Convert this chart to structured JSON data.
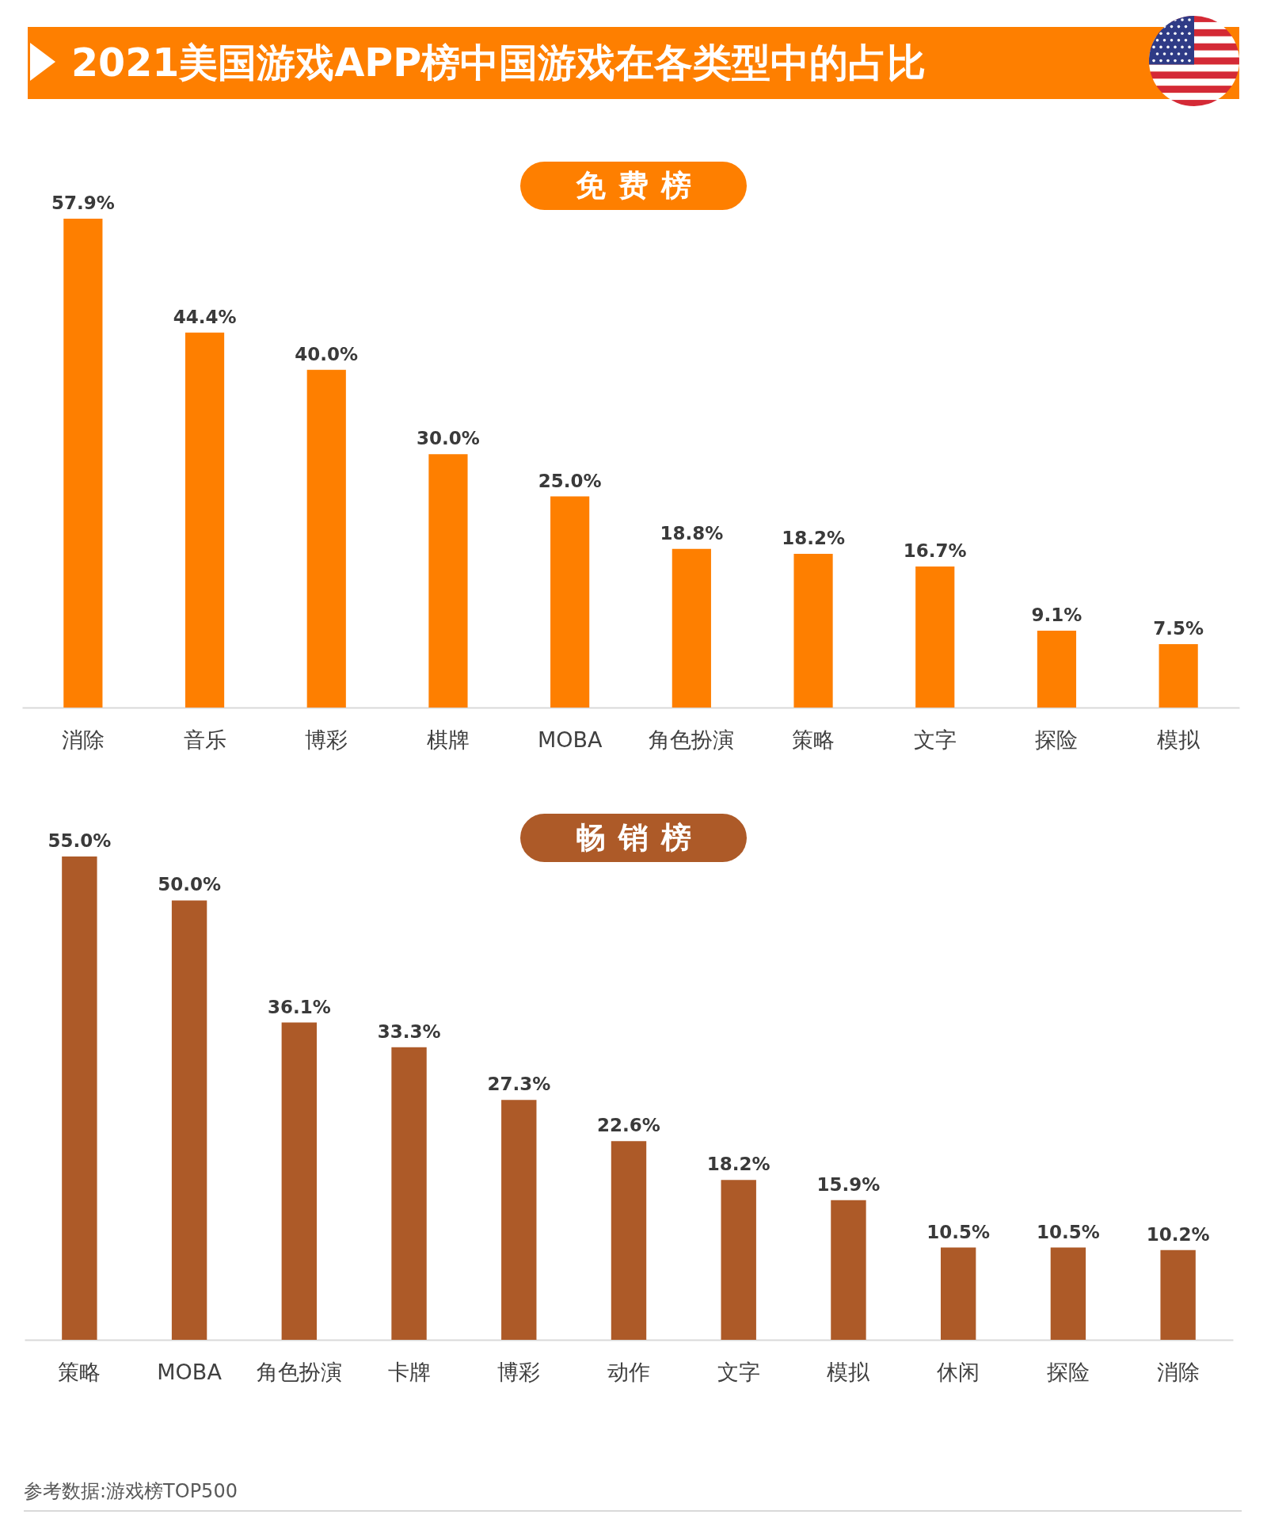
{
  "chart_data": [
    {
      "type": "bar",
      "title": "2021美国游戏APP榜中国游戏在各类型中的占比",
      "subtitle": "免费榜",
      "categories": [
        "消除",
        "音乐",
        "博彩",
        "棋牌",
        "MOBA",
        "角色扮演",
        "策略",
        "文字",
        "探险",
        "模拟"
      ],
      "values": [
        57.9,
        44.4,
        40.0,
        30.0,
        25.0,
        18.8,
        18.2,
        16.7,
        9.1,
        7.5
      ],
      "value_labels": [
        "57.9%",
        "44.4%",
        "40.0%",
        "30.0%",
        "25.0%",
        "18.8%",
        "18.2%",
        "16.7%",
        "9.1%",
        "7.5%"
      ],
      "color": "#fe7f00",
      "tick_labels": "x"
    },
    {
      "type": "bar",
      "title": "畅销榜",
      "categories": [
        "策略",
        "MOBA",
        "角色扮演",
        "卡牌",
        "博彩",
        "动作",
        "文字",
        "模拟",
        "休闲",
        "探险",
        "消除"
      ],
      "values": [
        55.0,
        50.0,
        36.1,
        33.3,
        27.3,
        22.6,
        18.2,
        15.9,
        10.5,
        10.5,
        10.2
      ],
      "value_labels": [
        "55.0%",
        "50.0%",
        "36.1%",
        "33.3%",
        "27.3%",
        "22.6%",
        "18.2%",
        "15.9%",
        "10.5%",
        "10.5%",
        "10.2%"
      ],
      "color": "#ad5a28",
      "tick_labels": "x",
      "annotations": [
        "参考数据:游戏榜TOP500"
      ]
    }
  ]
}
